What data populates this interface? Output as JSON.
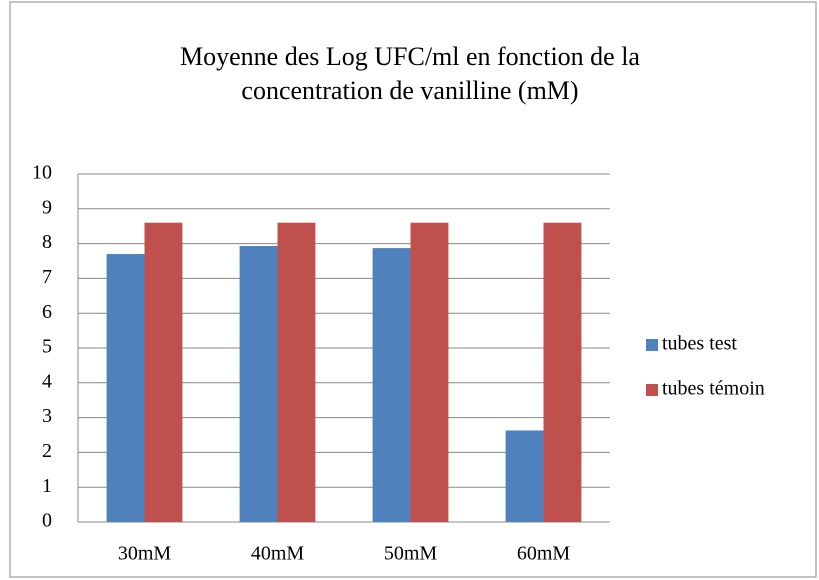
{
  "chart_data": {
    "type": "bar",
    "title": "Moyenne des Log UFC/ml en fonction de la concentration de vanilline  (mM)",
    "categories": [
      "30mM",
      "40mM",
      "50mM",
      "60mM"
    ],
    "series": [
      {
        "name": "tubes test",
        "color": "#4f81bd",
        "values": [
          7.7,
          7.93,
          7.87,
          2.63
        ]
      },
      {
        "name": "tubes témoin",
        "color": "#c0504d",
        "values": [
          8.6,
          8.6,
          8.6,
          8.6
        ]
      }
    ],
    "ylim": [
      0,
      10
    ],
    "yticks": [
      0,
      1,
      2,
      3,
      4,
      5,
      6,
      7,
      8,
      9,
      10
    ],
    "grid": true,
    "legend": "right"
  }
}
